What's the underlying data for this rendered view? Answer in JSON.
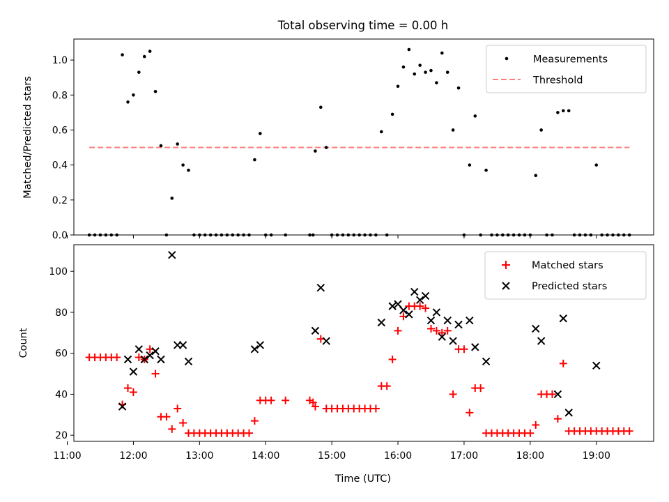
{
  "title": "Total observing time = 0.00 h",
  "chart_data": [
    {
      "type": "scatter",
      "ylabel": "Matched/Predicted stars",
      "ylim": [
        0,
        1.12
      ],
      "yticks": [
        "0.0",
        "0.2",
        "0.4",
        "0.6",
        "0.8",
        "1.0"
      ],
      "xlim": [
        "11:06",
        "19:52"
      ],
      "legend_position": "top-right",
      "series": [
        {
          "name": "Measurements",
          "color": "#000000",
          "marker": "dot",
          "points": [
            [
              "11:20",
              0
            ],
            [
              "11:25",
              0
            ],
            [
              "11:30",
              0
            ],
            [
              "11:35",
              0
            ],
            [
              "11:40",
              0
            ],
            [
              "11:45",
              0
            ],
            [
              "11:50",
              1.03
            ],
            [
              "11:55",
              0.76
            ],
            [
              "12:00",
              0.8
            ],
            [
              "12:05",
              0.93
            ],
            [
              "12:10",
              1.02
            ],
            [
              "12:15",
              1.05
            ],
            [
              "12:20",
              0.82
            ],
            [
              "12:25",
              0.51
            ],
            [
              "12:30",
              0
            ],
            [
              "12:35",
              0.21
            ],
            [
              "12:40",
              0.52
            ],
            [
              "12:45",
              0.4
            ],
            [
              "12:50",
              0.37
            ],
            [
              "12:55",
              0
            ],
            [
              "13:00",
              0
            ],
            [
              "13:05",
              0
            ],
            [
              "13:10",
              0
            ],
            [
              "13:15",
              0
            ],
            [
              "13:20",
              0
            ],
            [
              "13:25",
              0
            ],
            [
              "13:30",
              0
            ],
            [
              "13:35",
              0
            ],
            [
              "13:40",
              0
            ],
            [
              "13:45",
              0
            ],
            [
              "13:50",
              0.43
            ],
            [
              "13:55",
              0.58
            ],
            [
              "14:00",
              0
            ],
            [
              "14:05",
              0
            ],
            [
              "14:18",
              0
            ],
            [
              "14:40",
              0
            ],
            [
              "14:43",
              0
            ],
            [
              "14:45",
              0.48
            ],
            [
              "14:50",
              0.73
            ],
            [
              "14:55",
              0.5
            ],
            [
              "15:00",
              0
            ],
            [
              "15:05",
              0
            ],
            [
              "15:10",
              0
            ],
            [
              "15:15",
              0
            ],
            [
              "15:20",
              0
            ],
            [
              "15:25",
              0
            ],
            [
              "15:30",
              0
            ],
            [
              "15:35",
              0
            ],
            [
              "15:40",
              0
            ],
            [
              "15:45",
              0.59
            ],
            [
              "15:50",
              0
            ],
            [
              "15:55",
              0.69
            ],
            [
              "16:00",
              0.85
            ],
            [
              "16:05",
              0.96
            ],
            [
              "16:10",
              1.06
            ],
            [
              "16:15",
              0.92
            ],
            [
              "16:20",
              0.97
            ],
            [
              "16:25",
              0.93
            ],
            [
              "16:30",
              0.94
            ],
            [
              "16:35",
              0.87
            ],
            [
              "16:40",
              1.04
            ],
            [
              "16:45",
              0.93
            ],
            [
              "16:50",
              0.6
            ],
            [
              "16:55",
              0.84
            ],
            [
              "17:00",
              0
            ],
            [
              "17:05",
              0.4
            ],
            [
              "17:10",
              0.68
            ],
            [
              "17:15",
              0
            ],
            [
              "17:20",
              0.37
            ],
            [
              "17:25",
              0
            ],
            [
              "17:30",
              0
            ],
            [
              "17:35",
              0
            ],
            [
              "17:40",
              0
            ],
            [
              "17:45",
              0
            ],
            [
              "17:50",
              0
            ],
            [
              "17:55",
              0
            ],
            [
              "18:00",
              0
            ],
            [
              "18:05",
              0.34
            ],
            [
              "18:10",
              0.6
            ],
            [
              "18:15",
              0
            ],
            [
              "18:20",
              0
            ],
            [
              "18:25",
              0.7
            ],
            [
              "18:30",
              0.71
            ],
            [
              "18:35",
              0.71
            ],
            [
              "18:40",
              0
            ],
            [
              "18:45",
              0
            ],
            [
              "18:50",
              0
            ],
            [
              "18:55",
              0
            ],
            [
              "19:00",
              0.4
            ],
            [
              "19:05",
              0
            ],
            [
              "19:10",
              0
            ],
            [
              "19:15",
              0
            ],
            [
              "19:20",
              0
            ],
            [
              "19:25",
              0
            ],
            [
              "19:30",
              0
            ]
          ]
        },
        {
          "name": "Threshold",
          "color": "#ff7f7f",
          "style": "dashed",
          "points": [
            [
              "11:20",
              0.5
            ],
            [
              "19:30",
              0.5
            ]
          ]
        }
      ]
    },
    {
      "type": "scatter",
      "xlabel": "Time (UTC)",
      "ylabel": "Count",
      "ylim": [
        17,
        113
      ],
      "yticks": [
        "20",
        "40",
        "60",
        "80",
        "100"
      ],
      "xlim": [
        "11:06",
        "19:52"
      ],
      "xticks": [
        "11:00",
        "12:00",
        "13:00",
        "14:00",
        "15:00",
        "16:00",
        "17:00",
        "18:00",
        "19:00"
      ],
      "legend_position": "top-right",
      "series": [
        {
          "name": "Matched stars",
          "color": "#ff0000",
          "marker": "plus",
          "points": [
            [
              "11:20",
              58
            ],
            [
              "11:25",
              58
            ],
            [
              "11:30",
              58
            ],
            [
              "11:35",
              58
            ],
            [
              "11:40",
              58
            ],
            [
              "11:45",
              58
            ],
            [
              "11:50",
              35
            ],
            [
              "11:55",
              43
            ],
            [
              "12:00",
              41
            ],
            [
              "12:05",
              58
            ],
            [
              "12:10",
              57
            ],
            [
              "12:15",
              62
            ],
            [
              "12:20",
              50
            ],
            [
              "12:25",
              29
            ],
            [
              "12:30",
              29
            ],
            [
              "12:35",
              23
            ],
            [
              "12:40",
              33
            ],
            [
              "12:45",
              26
            ],
            [
              "12:50",
              21
            ],
            [
              "12:55",
              21
            ],
            [
              "13:00",
              21
            ],
            [
              "13:05",
              21
            ],
            [
              "13:10",
              21
            ],
            [
              "13:15",
              21
            ],
            [
              "13:20",
              21
            ],
            [
              "13:25",
              21
            ],
            [
              "13:30",
              21
            ],
            [
              "13:35",
              21
            ],
            [
              "13:40",
              21
            ],
            [
              "13:45",
              21
            ],
            [
              "13:50",
              27
            ],
            [
              "13:55",
              37
            ],
            [
              "14:00",
              37
            ],
            [
              "14:05",
              37
            ],
            [
              "14:18",
              37
            ],
            [
              "14:40",
              37
            ],
            [
              "14:43",
              36
            ],
            [
              "14:45",
              34
            ],
            [
              "14:50",
              67
            ],
            [
              "14:55",
              33
            ],
            [
              "15:00",
              33
            ],
            [
              "15:05",
              33
            ],
            [
              "15:10",
              33
            ],
            [
              "15:15",
              33
            ],
            [
              "15:20",
              33
            ],
            [
              "15:25",
              33
            ],
            [
              "15:30",
              33
            ],
            [
              "15:35",
              33
            ],
            [
              "15:40",
              33
            ],
            [
              "15:45",
              44
            ],
            [
              "15:50",
              44
            ],
            [
              "15:55",
              57
            ],
            [
              "16:00",
              71
            ],
            [
              "16:05",
              78
            ],
            [
              "16:10",
              83
            ],
            [
              "16:15",
              83
            ],
            [
              "16:20",
              83
            ],
            [
              "16:25",
              82
            ],
            [
              "16:30",
              72
            ],
            [
              "16:35",
              71
            ],
            [
              "16:40",
              70
            ],
            [
              "16:45",
              71
            ],
            [
              "16:50",
              40
            ],
            [
              "16:55",
              62
            ],
            [
              "17:00",
              62
            ],
            [
              "17:05",
              31
            ],
            [
              "17:10",
              43
            ],
            [
              "17:15",
              43
            ],
            [
              "17:20",
              21
            ],
            [
              "17:25",
              21
            ],
            [
              "17:30",
              21
            ],
            [
              "17:35",
              21
            ],
            [
              "17:40",
              21
            ],
            [
              "17:45",
              21
            ],
            [
              "17:50",
              21
            ],
            [
              "17:55",
              21
            ],
            [
              "18:00",
              21
            ],
            [
              "18:05",
              25
            ],
            [
              "18:10",
              40
            ],
            [
              "18:15",
              40
            ],
            [
              "18:20",
              40
            ],
            [
              "18:25",
              28
            ],
            [
              "18:30",
              55
            ],
            [
              "18:35",
              22
            ],
            [
              "18:40",
              22
            ],
            [
              "18:45",
              22
            ],
            [
              "18:50",
              22
            ],
            [
              "18:55",
              22
            ],
            [
              "19:00",
              22
            ],
            [
              "19:05",
              22
            ],
            [
              "19:10",
              22
            ],
            [
              "19:15",
              22
            ],
            [
              "19:20",
              22
            ],
            [
              "19:25",
              22
            ],
            [
              "19:30",
              22
            ]
          ]
        },
        {
          "name": "Predicted stars",
          "color": "#000000",
          "marker": "x",
          "points": [
            [
              "11:50",
              34
            ],
            [
              "11:55",
              57
            ],
            [
              "12:00",
              51
            ],
            [
              "12:05",
              62
            ],
            [
              "12:10",
              57
            ],
            [
              "12:15",
              59
            ],
            [
              "12:20",
              61
            ],
            [
              "12:25",
              57
            ],
            [
              "12:35",
              108
            ],
            [
              "12:40",
              64
            ],
            [
              "12:45",
              64
            ],
            [
              "12:50",
              56
            ],
            [
              "13:50",
              62
            ],
            [
              "13:55",
              64
            ],
            [
              "14:45",
              71
            ],
            [
              "14:50",
              92
            ],
            [
              "14:55",
              66
            ],
            [
              "15:45",
              75
            ],
            [
              "15:55",
              83
            ],
            [
              "16:00",
              84
            ],
            [
              "16:05",
              81
            ],
            [
              "16:10",
              79
            ],
            [
              "16:15",
              90
            ],
            [
              "16:20",
              86
            ],
            [
              "16:25",
              88
            ],
            [
              "16:30",
              76
            ],
            [
              "16:35",
              80
            ],
            [
              "16:40",
              68
            ],
            [
              "16:45",
              76
            ],
            [
              "16:50",
              66
            ],
            [
              "16:55",
              74
            ],
            [
              "17:05",
              76
            ],
            [
              "17:10",
              63
            ],
            [
              "17:20",
              56
            ],
            [
              "18:05",
              72
            ],
            [
              "18:10",
              66
            ],
            [
              "18:25",
              40
            ],
            [
              "18:30",
              77
            ],
            [
              "18:35",
              31
            ],
            [
              "19:00",
              54
            ]
          ]
        }
      ]
    }
  ]
}
